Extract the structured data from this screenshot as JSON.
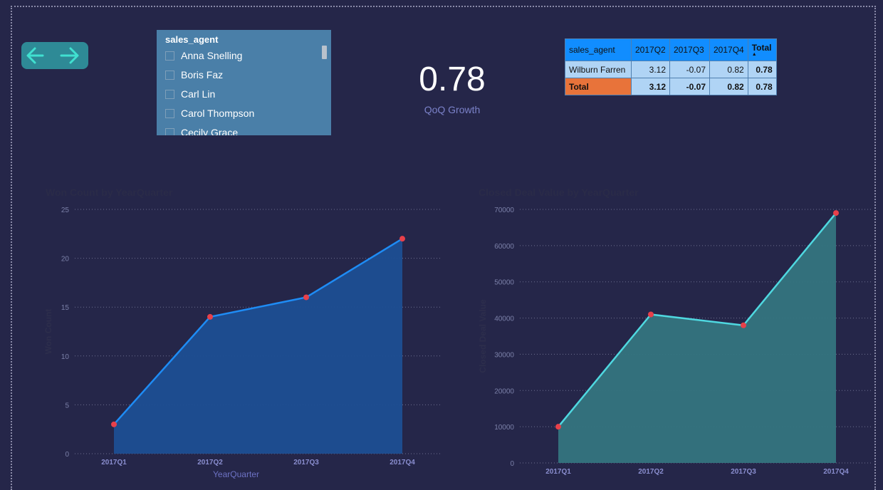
{
  "navigation": {
    "back_icon": "arrow-left-icon",
    "forward_icon": "arrow-right-icon",
    "accent": "#40e0d0"
  },
  "slicer": {
    "title": "sales_agent",
    "items": [
      "Anna Snelling",
      "Boris Faz",
      "Carl Lin",
      "Carol Thompson",
      "Cecily Grace"
    ]
  },
  "kpi": {
    "value": "0.78",
    "label": "QoQ Growth"
  },
  "matrix": {
    "headers": [
      "sales_agent",
      "2017Q2",
      "2017Q3",
      "2017Q4",
      "Total"
    ],
    "rows": [
      {
        "label": "Wilburn Farren",
        "values": [
          "3.12",
          "-0.07",
          "0.82",
          "0.78"
        ]
      }
    ],
    "total": {
      "label": "Total",
      "values": [
        "3.12",
        "-0.07",
        "0.82",
        "0.78"
      ]
    }
  },
  "chart_data": [
    {
      "type": "area",
      "title": "Won Count by YearQuarter",
      "xlabel": "YearQuarter",
      "ylabel": "Won Count",
      "categories": [
        "2017Q1",
        "2017Q2",
        "2017Q3",
        "2017Q4"
      ],
      "values": [
        3,
        14,
        16,
        22
      ],
      "ylim": [
        0,
        25
      ],
      "yticks": [
        0,
        5,
        10,
        15,
        20,
        25
      ],
      "line_color": "#1e8cf5",
      "fill_color": "#1c4e93",
      "marker_color": "#e8404a",
      "grid": true
    },
    {
      "type": "area",
      "title": "Closed Deal Value by YearQuarter",
      "xlabel": "",
      "ylabel": "Closed Deal Value",
      "categories": [
        "2017Q1",
        "2017Q2",
        "2017Q3",
        "2017Q4"
      ],
      "values": [
        10000,
        41000,
        38000,
        69000
      ],
      "ylim": [
        0,
        70000
      ],
      "yticks": [
        0,
        10000,
        20000,
        30000,
        40000,
        50000,
        60000,
        70000
      ],
      "line_color": "#4fd8e0",
      "fill_color": "#347480",
      "marker_color": "#e8404a",
      "grid": true
    }
  ]
}
